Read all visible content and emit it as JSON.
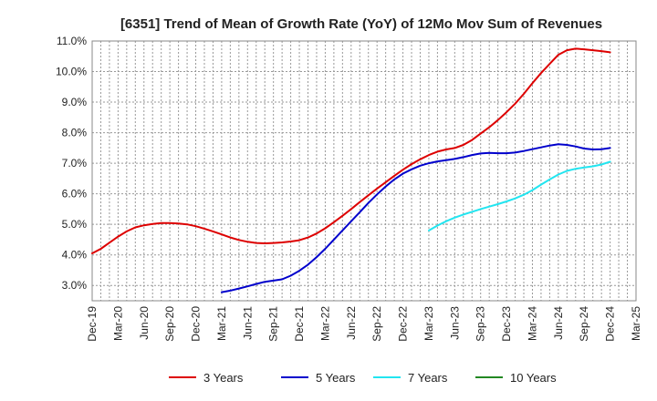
{
  "chart_data": {
    "type": "line",
    "title": "[6351]  Trend of Mean of Growth Rate (YoY) of 12Mo Mov Sum of Revenues",
    "xlabel": "",
    "ylabel": "",
    "ylim": [
      2.5,
      11.0
    ],
    "y_ticks": [
      {
        "value": 3.0,
        "label": "3.0%"
      },
      {
        "value": 4.0,
        "label": "4.0%"
      },
      {
        "value": 5.0,
        "label": "5.0%"
      },
      {
        "value": 6.0,
        "label": "6.0%"
      },
      {
        "value": 7.0,
        "label": "7.0%"
      },
      {
        "value": 8.0,
        "label": "8.0%"
      },
      {
        "value": 9.0,
        "label": "9.0%"
      },
      {
        "value": 10.0,
        "label": "10.0%"
      },
      {
        "value": 11.0,
        "label": "11.0%"
      }
    ],
    "x_range": [
      0,
      63
    ],
    "x_ticks": [
      {
        "index": 0,
        "label": "Dec-19"
      },
      {
        "index": 3,
        "label": "Mar-20"
      },
      {
        "index": 6,
        "label": "Jun-20"
      },
      {
        "index": 9,
        "label": "Sep-20"
      },
      {
        "index": 12,
        "label": "Dec-20"
      },
      {
        "index": 15,
        "label": "Mar-21"
      },
      {
        "index": 18,
        "label": "Jun-21"
      },
      {
        "index": 21,
        "label": "Sep-21"
      },
      {
        "index": 24,
        "label": "Dec-21"
      },
      {
        "index": 27,
        "label": "Mar-22"
      },
      {
        "index": 30,
        "label": "Jun-22"
      },
      {
        "index": 33,
        "label": "Sep-22"
      },
      {
        "index": 36,
        "label": "Dec-22"
      },
      {
        "index": 39,
        "label": "Mar-23"
      },
      {
        "index": 42,
        "label": "Jun-23"
      },
      {
        "index": 45,
        "label": "Sep-23"
      },
      {
        "index": 48,
        "label": "Dec-23"
      },
      {
        "index": 51,
        "label": "Mar-24"
      },
      {
        "index": 54,
        "label": "Jun-24"
      },
      {
        "index": 57,
        "label": "Sep-24"
      },
      {
        "index": 60,
        "label": "Dec-24"
      },
      {
        "index": 63,
        "label": "Mar-25"
      }
    ],
    "grid": true,
    "legend_position": "bottom",
    "series": [
      {
        "name": "3 Years",
        "color": "#dd0000",
        "points": [
          [
            0,
            4.05
          ],
          [
            1,
            4.2
          ],
          [
            2,
            4.4
          ],
          [
            3,
            4.6
          ],
          [
            4,
            4.77
          ],
          [
            5,
            4.9
          ],
          [
            6,
            4.97
          ],
          [
            7,
            5.01
          ],
          [
            8,
            5.04
          ],
          [
            9,
            5.04
          ],
          [
            10,
            5.03
          ],
          [
            11,
            5.0
          ],
          [
            12,
            4.94
          ],
          [
            13,
            4.86
          ],
          [
            14,
            4.77
          ],
          [
            15,
            4.67
          ],
          [
            16,
            4.57
          ],
          [
            17,
            4.49
          ],
          [
            18,
            4.43
          ],
          [
            19,
            4.39
          ],
          [
            20,
            4.38
          ],
          [
            21,
            4.39
          ],
          [
            22,
            4.41
          ],
          [
            23,
            4.44
          ],
          [
            24,
            4.48
          ],
          [
            25,
            4.57
          ],
          [
            26,
            4.7
          ],
          [
            27,
            4.87
          ],
          [
            28,
            5.07
          ],
          [
            29,
            5.28
          ],
          [
            30,
            5.5
          ],
          [
            31,
            5.73
          ],
          [
            32,
            5.95
          ],
          [
            33,
            6.17
          ],
          [
            34,
            6.38
          ],
          [
            35,
            6.59
          ],
          [
            36,
            6.79
          ],
          [
            37,
            6.97
          ],
          [
            38,
            7.13
          ],
          [
            39,
            7.27
          ],
          [
            40,
            7.38
          ],
          [
            41,
            7.45
          ],
          [
            42,
            7.5
          ],
          [
            43,
            7.6
          ],
          [
            44,
            7.76
          ],
          [
            45,
            7.97
          ],
          [
            46,
            8.18
          ],
          [
            47,
            8.41
          ],
          [
            48,
            8.67
          ],
          [
            49,
            8.95
          ],
          [
            50,
            9.27
          ],
          [
            51,
            9.62
          ],
          [
            52,
            9.95
          ],
          [
            53,
            10.25
          ],
          [
            54,
            10.55
          ],
          [
            55,
            10.7
          ],
          [
            56,
            10.75
          ],
          [
            57,
            10.73
          ],
          [
            58,
            10.7
          ],
          [
            59,
            10.67
          ],
          [
            60,
            10.63
          ]
        ]
      },
      {
        "name": "5 Years",
        "color": "#0000cc",
        "points": [
          [
            15,
            2.78
          ],
          [
            16,
            2.83
          ],
          [
            17,
            2.9
          ],
          [
            18,
            2.97
          ],
          [
            19,
            3.05
          ],
          [
            20,
            3.12
          ],
          [
            21,
            3.16
          ],
          [
            22,
            3.2
          ],
          [
            23,
            3.32
          ],
          [
            24,
            3.48
          ],
          [
            25,
            3.68
          ],
          [
            26,
            3.93
          ],
          [
            27,
            4.2
          ],
          [
            28,
            4.5
          ],
          [
            29,
            4.8
          ],
          [
            30,
            5.1
          ],
          [
            31,
            5.4
          ],
          [
            32,
            5.7
          ],
          [
            33,
            5.98
          ],
          [
            34,
            6.24
          ],
          [
            35,
            6.47
          ],
          [
            36,
            6.66
          ],
          [
            37,
            6.8
          ],
          [
            38,
            6.92
          ],
          [
            39,
            7.0
          ],
          [
            40,
            7.06
          ],
          [
            41,
            7.1
          ],
          [
            42,
            7.14
          ],
          [
            43,
            7.2
          ],
          [
            44,
            7.27
          ],
          [
            45,
            7.32
          ],
          [
            46,
            7.34
          ],
          [
            47,
            7.33
          ],
          [
            48,
            7.33
          ],
          [
            49,
            7.35
          ],
          [
            50,
            7.4
          ],
          [
            51,
            7.46
          ],
          [
            52,
            7.52
          ],
          [
            53,
            7.58
          ],
          [
            54,
            7.62
          ],
          [
            55,
            7.6
          ],
          [
            56,
            7.55
          ],
          [
            57,
            7.48
          ],
          [
            58,
            7.45
          ],
          [
            59,
            7.46
          ],
          [
            60,
            7.5
          ]
        ]
      },
      {
        "name": "7 Years",
        "color": "#22e5f0",
        "points": [
          [
            39,
            4.8
          ],
          [
            40,
            4.96
          ],
          [
            41,
            5.1
          ],
          [
            42,
            5.22
          ],
          [
            43,
            5.32
          ],
          [
            44,
            5.41
          ],
          [
            45,
            5.5
          ],
          [
            46,
            5.58
          ],
          [
            47,
            5.66
          ],
          [
            48,
            5.75
          ],
          [
            49,
            5.85
          ],
          [
            50,
            5.97
          ],
          [
            51,
            6.12
          ],
          [
            52,
            6.3
          ],
          [
            53,
            6.47
          ],
          [
            54,
            6.63
          ],
          [
            55,
            6.75
          ],
          [
            56,
            6.82
          ],
          [
            57,
            6.86
          ],
          [
            58,
            6.9
          ],
          [
            59,
            6.96
          ],
          [
            60,
            7.05
          ]
        ]
      },
      {
        "name": "10 Years",
        "color": "#228822",
        "points": []
      }
    ]
  }
}
